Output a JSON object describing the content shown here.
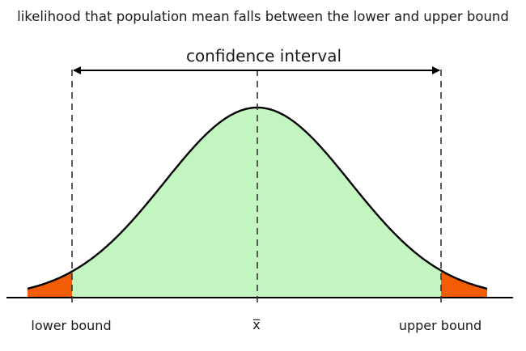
{
  "caption": "likelihood that population mean falls between the lower and upper bound",
  "interval_label": "confidence interval",
  "labels": {
    "lower": "lower bound",
    "mean": "x̅",
    "upper": "upper bound"
  },
  "colors": {
    "interval_fill": "#c2f5c0",
    "tail_fill": "#f25c05",
    "curve_stroke": "#000000",
    "text": "#1a1a1a"
  }
}
